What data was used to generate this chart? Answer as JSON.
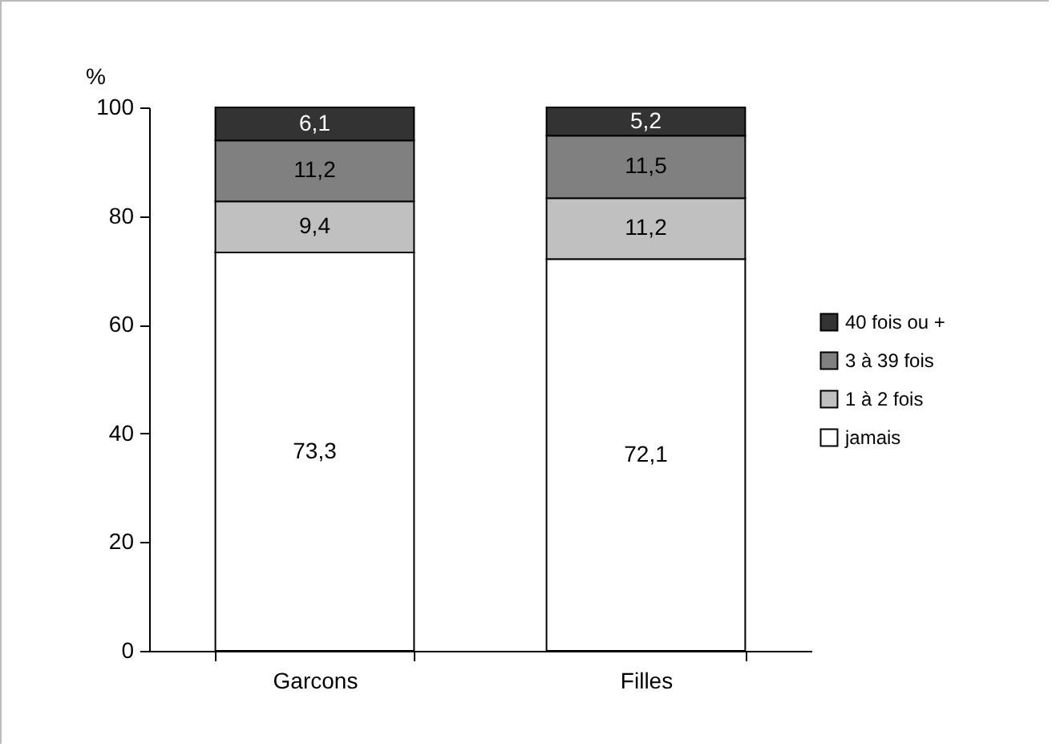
{
  "chart_data": {
    "type": "bar",
    "stacked": true,
    "ylabel": "%",
    "categories": [
      "Garcons",
      "Filles"
    ],
    "series": [
      {
        "name": "jamais",
        "color": "#ffffff",
        "values": [
          73.3,
          72.1
        ],
        "value_labels": [
          "73,3",
          "72,1"
        ]
      },
      {
        "name": "1 à 2 fois",
        "color": "#c0c0c0",
        "values": [
          9.4,
          11.2
        ],
        "value_labels": [
          "9,4",
          "11,2"
        ]
      },
      {
        "name": "3 à 39 fois",
        "color": "#808080",
        "values": [
          11.2,
          11.5
        ],
        "value_labels": [
          "11,2",
          "11,5"
        ]
      },
      {
        "name": "40 fois ou +",
        "color": "#333333",
        "values": [
          6.1,
          5.2
        ],
        "value_labels": [
          "6,1",
          "5,2"
        ]
      }
    ],
    "ylim": [
      0,
      100
    ],
    "yticks": [
      0,
      20,
      40,
      60,
      80,
      100
    ],
    "grid": false,
    "legend": "right"
  }
}
